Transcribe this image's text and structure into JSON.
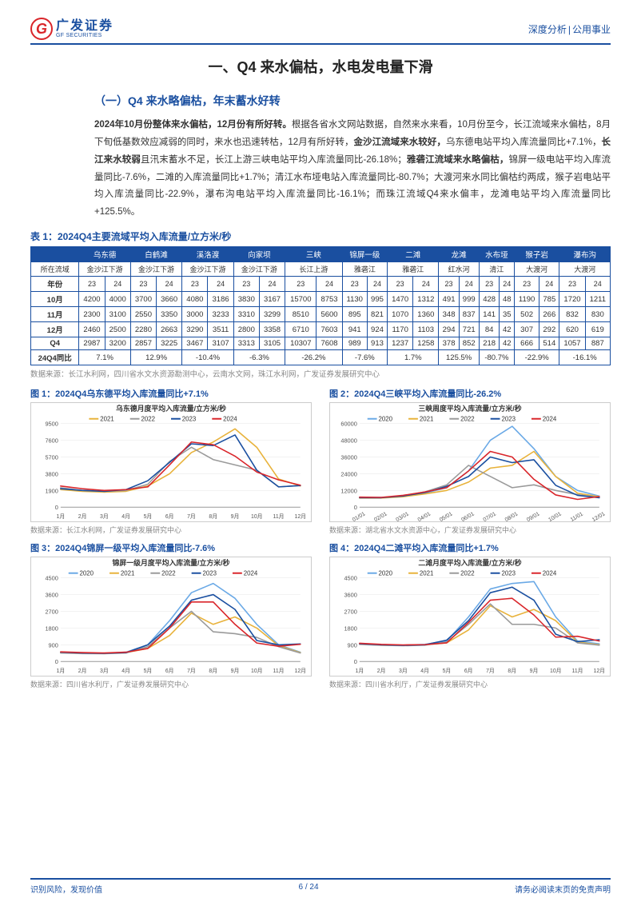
{
  "header": {
    "logo_cn": "广发证券",
    "logo_en": "GF SECURITIES",
    "logo_letter": "G",
    "right_a": "深度分析",
    "right_b": "公用事业"
  },
  "colors": {
    "brand_blue": "#1a4fa0",
    "brand_red": "#d9252a",
    "text": "#333333",
    "muted": "#888888",
    "grid": "#e6e6e6",
    "border": "#cccccc"
  },
  "h1": "一、Q4 来水偏枯，水电发电量下滑",
  "h2": "（一）Q4 来水略偏枯，年末蓄水好转",
  "para_html_parts": [
    {
      "t": "2024年10月份整体来水偏枯，12月份有所好转。",
      "b": true
    },
    {
      "t": "根据各省水文网站数据，自然来水来看，10月份至今，长江流域来水偏枯，8月下旬低基数效应减弱的同时，来水也迅速转枯，12月有所好转，",
      "b": false
    },
    {
      "t": "金沙江流域来水较好，",
      "b": true
    },
    {
      "t": "乌东德电站平均入库流量同比+7.1%，",
      "b": false
    },
    {
      "t": "长江来水较弱",
      "b": true
    },
    {
      "t": "且汛末蓄水不足，长江上游三峡电站平均入库流量同比-26.18%；",
      "b": false
    },
    {
      "t": "雅砻江流域来水略偏枯，",
      "b": true
    },
    {
      "t": "锦屏一级电站平均入库流量同比-7.6%，二滩的入库流量同比+1.7%；清江水布垭电站入库流量同比-80.7%；大渡河来水同比偏枯约两成，猴子岩电站平均入库流量同比-22.9%，瀑布沟电站平均入库流量同比-16.1%；而珠江流域Q4来水偏丰，龙滩电站平均入库流量同比+125.5%。",
      "b": false
    }
  ],
  "table": {
    "caption": "表 1：2024Q4主要流域平均入库流量/立方米/秒",
    "stations": [
      "乌东德",
      "白鹤滩",
      "溪洛渡",
      "向家坝",
      "三峡",
      "锦屏一级",
      "二滩",
      "龙滩",
      "水布垭",
      "猴子岩",
      "瀑布沟"
    ],
    "river_row_label": "所在流域",
    "rivers": [
      "金沙江下游",
      "金沙江下游",
      "金沙江下游",
      "金沙江下游",
      "长江上游",
      "雅砻江",
      "雅砻江",
      "红水河",
      "清江",
      "大渡河",
      "大渡河"
    ],
    "year_row_label": "年份",
    "year_cells": [
      "23",
      "24",
      "23",
      "24",
      "23",
      "24",
      "23",
      "24",
      "23",
      "24",
      "23",
      "24",
      "23",
      "24",
      "23",
      "24",
      "23",
      "24",
      "23",
      "24",
      "23",
      "24"
    ],
    "rows": [
      {
        "label": "10月",
        "cells": [
          "4200",
          "4000",
          "3700",
          "3660",
          "4080",
          "3186",
          "3830",
          "3167",
          "15700",
          "8753",
          "1130",
          "995",
          "1470",
          "1312",
          "491",
          "999",
          "428",
          "48",
          "1190",
          "785",
          "1720",
          "1211"
        ]
      },
      {
        "label": "11月",
        "cells": [
          "2300",
          "3100",
          "2550",
          "3350",
          "3000",
          "3233",
          "3310",
          "3299",
          "8510",
          "5600",
          "895",
          "821",
          "1070",
          "1360",
          "348",
          "837",
          "141",
          "35",
          "502",
          "266",
          "832",
          "830"
        ]
      },
      {
        "label": "12月",
        "cells": [
          "2460",
          "2500",
          "2280",
          "2663",
          "3290",
          "3511",
          "2800",
          "3358",
          "6710",
          "7603",
          "941",
          "924",
          "1170",
          "1103",
          "294",
          "721",
          "84",
          "42",
          "307",
          "292",
          "620",
          "619"
        ]
      },
      {
        "label": "Q4",
        "cells": [
          "2987",
          "3200",
          "2857",
          "3225",
          "3467",
          "3107",
          "3313",
          "3105",
          "10307",
          "7608",
          "989",
          "913",
          "1237",
          "1258",
          "378",
          "852",
          "218",
          "42",
          "666",
          "514",
          "1057",
          "887"
        ]
      },
      {
        "label": "24Q4同比",
        "wide": true,
        "cells": [
          "7.1%",
          "12.9%",
          "-10.4%",
          "-6.3%",
          "-26.2%",
          "-7.6%",
          "1.7%",
          "125.5%",
          "-80.7%",
          "-22.9%",
          "-16.1%"
        ]
      }
    ],
    "source": "数据来源：长江水利网，四川省水文水资源勘测中心，云南水文网，珠江水利网，广发证券发展研究中心"
  },
  "chart_palette": {
    "2020": "#6aa9e6",
    "2021": "#e8b23a",
    "2022": "#9a9a9a",
    "2023": "#1a4fa0",
    "2024": "#d9252a"
  },
  "charts": [
    {
      "id": "c1",
      "title": "图 1：2024Q4乌东德平均入库流量同比+7.1%",
      "subtitle": "乌东德月度平均入库流量/立方米/秒",
      "legend": [
        "2021",
        "2022",
        "2023",
        "2024"
      ],
      "x": [
        "1月",
        "2月",
        "3月",
        "4月",
        "5月",
        "6月",
        "7月",
        "8月",
        "9月",
        "10月",
        "11月",
        "12月"
      ],
      "ymax": 9500,
      "ytick": 1900,
      "series": {
        "2021": [
          2000,
          1800,
          1700,
          1800,
          2400,
          3800,
          6200,
          7400,
          8900,
          6800,
          3200,
          2400
        ],
        "2022": [
          2200,
          1900,
          1800,
          1900,
          2600,
          5200,
          6800,
          5400,
          4800,
          4200,
          2300,
          2460
        ],
        "2023": [
          2100,
          1900,
          1800,
          2000,
          3000,
          5100,
          7200,
          7000,
          8200,
          4200,
          2300,
          2460
        ],
        "2024": [
          2400,
          2100,
          1900,
          2000,
          2300,
          4800,
          7400,
          7100,
          5800,
          4000,
          3100,
          2500
        ]
      },
      "source": "数据来源：长江水利网，广发证券发展研究中心"
    },
    {
      "id": "c2",
      "title": "图 2：2024Q4三峡平均入库流量同比-26.2%",
      "subtitle": "三峡周度平均入库流量/立方米/秒",
      "legend": [
        "2020",
        "2021",
        "2022",
        "2023",
        "2024"
      ],
      "x": [
        "01/01",
        "02/01",
        "03/01",
        "04/01",
        "05/01",
        "06/01",
        "07/01",
        "08/01",
        "09/01",
        "10/01",
        "11/01",
        "12/01"
      ],
      "ymax": 60000,
      "ytick": 12000,
      "series": {
        "2020": [
          7000,
          7000,
          8000,
          10000,
          14000,
          26000,
          48000,
          58000,
          42000,
          22000,
          12000,
          8000
        ],
        "2021": [
          6500,
          6500,
          7500,
          9500,
          12000,
          18000,
          28000,
          30000,
          40000,
          22000,
          10000,
          7500
        ],
        "2022": [
          7000,
          6800,
          8200,
          11000,
          16000,
          30000,
          22000,
          14000,
          16000,
          12000,
          9000,
          7000
        ],
        "2023": [
          6800,
          6800,
          8000,
          10500,
          15000,
          22000,
          36000,
          32000,
          34000,
          15700,
          8510,
          6710
        ],
        "2024": [
          7200,
          7000,
          8500,
          11000,
          14000,
          26000,
          40000,
          36000,
          20000,
          8753,
          5600,
          7603
        ]
      },
      "source": "数据来源：湖北省水文水资源中心，广发证券发展研究中心"
    },
    {
      "id": "c3",
      "title": "图 3：2024Q4锦屏一级平均入库流量同比-7.6%",
      "subtitle": "锦屏一级月度平均入库流量/立方米/秒",
      "legend": [
        "2020",
        "2021",
        "2022",
        "2023",
        "2024"
      ],
      "x": [
        "1月",
        "2月",
        "3月",
        "4月",
        "5月",
        "6月",
        "7月",
        "8月",
        "9月",
        "10月",
        "11月",
        "12月"
      ],
      "ymax": 4500,
      "ytick": 900,
      "series": {
        "2020": [
          480,
          450,
          440,
          500,
          900,
          2200,
          3700,
          4200,
          3400,
          2000,
          900,
          500
        ],
        "2021": [
          470,
          440,
          430,
          480,
          700,
          1400,
          2600,
          2000,
          2400,
          1800,
          850,
          480
        ],
        "2022": [
          460,
          430,
          420,
          460,
          800,
          1800,
          2700,
          1600,
          1500,
          1300,
          800,
          460
        ],
        "2023": [
          500,
          460,
          440,
          480,
          900,
          1900,
          3300,
          3600,
          2800,
          1130,
          895,
          941
        ],
        "2024": [
          520,
          480,
          460,
          500,
          700,
          1800,
          3200,
          3200,
          2000,
          995,
          821,
          924
        ]
      },
      "source": "数据来源：四川省水利厅，广发证券发展研究中心"
    },
    {
      "id": "c4",
      "title": "图 4：2024Q4二滩平均入库流量同比+1.7%",
      "subtitle": "二滩月度平均入库流量/立方米/秒",
      "legend": [
        "2020",
        "2021",
        "2022",
        "2023",
        "2024"
      ],
      "x": [
        "1月",
        "2月",
        "3月",
        "4月",
        "5月",
        "6月",
        "7月",
        "8月",
        "9月",
        "10月",
        "11月",
        "12月"
      ],
      "ymax": 4500,
      "ytick": 900,
      "series": {
        "2020": [
          950,
          900,
          880,
          920,
          1100,
          2400,
          3900,
          4200,
          4300,
          2400,
          1100,
          950
        ],
        "2021": [
          940,
          880,
          860,
          900,
          1000,
          1700,
          3000,
          2400,
          2800,
          2200,
          1050,
          900
        ],
        "2022": [
          920,
          870,
          850,
          880,
          1050,
          2000,
          3100,
          2000,
          2000,
          1800,
          1000,
          880
        ],
        "2023": [
          960,
          900,
          870,
          900,
          1150,
          2200,
          3700,
          4000,
          3300,
          1470,
          1070,
          1170
        ],
        "2024": [
          980,
          920,
          890,
          910,
          1000,
          2100,
          3300,
          3400,
          2500,
          1312,
          1360,
          1103
        ]
      },
      "source": "数据来源：四川省水利厅，广发证券发展研究中心"
    }
  ],
  "footer": {
    "left": "识别风险，发现价值",
    "page_cur": "6",
    "page_sep": " / ",
    "page_total": "24",
    "right": "请务必阅读末页的免责声明"
  }
}
